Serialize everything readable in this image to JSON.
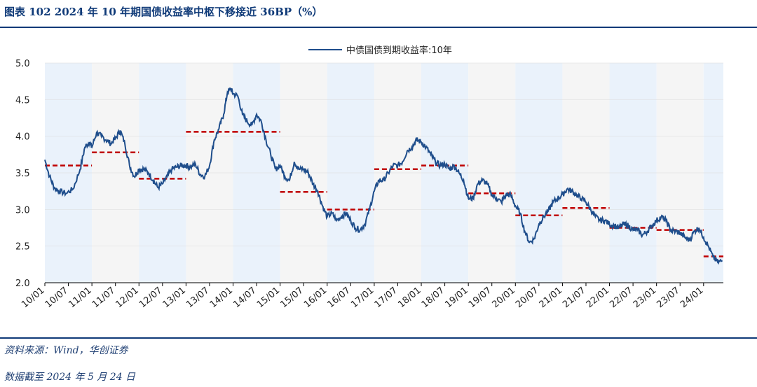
{
  "header": {
    "title": "图表 102   2024 年 10 年期国债收益率中枢下移接近 36BP（%）"
  },
  "footer": {
    "source": "资料来源：Wind，华创证券",
    "cutoff": "数据截至 2024 年 5 月 24 日"
  },
  "colors": {
    "line": "#1f4e8c",
    "mean": "#c00000",
    "band": "#eaf2fb",
    "band_alt": "#f5f5f5",
    "rule": "#0f3a78"
  },
  "chart_data": {
    "type": "line",
    "title": "",
    "legend": [
      "中债国债到期收益率:10年"
    ],
    "legend_position": "top-center",
    "xlabel": "",
    "ylabel": "",
    "ylim": [
      2.0,
      5.0
    ],
    "yticks": [
      "2.0",
      "2.5",
      "3.0",
      "3.5",
      "4.0",
      "4.5",
      "5.0"
    ],
    "x_range": [
      2010.0,
      2024.42
    ],
    "xticks": [
      "10/01",
      "10/07",
      "11/01",
      "11/07",
      "12/01",
      "12/07",
      "13/01",
      "13/07",
      "14/01",
      "14/07",
      "15/01",
      "15/07",
      "16/01",
      "16/07",
      "17/01",
      "17/07",
      "18/01",
      "18/07",
      "19/01",
      "19/07",
      "20/01",
      "20/07",
      "21/01",
      "21/07",
      "22/01",
      "22/07",
      "23/01",
      "23/07",
      "24/01"
    ],
    "series": [
      {
        "name": "中债国债到期收益率:10年",
        "x": [
          2010.0,
          2010.1,
          2010.2,
          2010.3,
          2010.45,
          2010.6,
          2010.75,
          2010.85,
          2010.95,
          2011.0,
          2011.1,
          2011.2,
          2011.3,
          2011.4,
          2011.5,
          2011.6,
          2011.7,
          2011.8,
          2011.9,
          2012.0,
          2012.1,
          2012.2,
          2012.3,
          2012.4,
          2012.5,
          2012.6,
          2012.7,
          2012.8,
          2012.9,
          2013.0,
          2013.1,
          2013.2,
          2013.3,
          2013.4,
          2013.5,
          2013.6,
          2013.7,
          2013.8,
          2013.88,
          2013.95,
          2014.0,
          2014.1,
          2014.2,
          2014.3,
          2014.4,
          2014.5,
          2014.6,
          2014.7,
          2014.8,
          2014.9,
          2015.0,
          2015.1,
          2015.2,
          2015.3,
          2015.4,
          2015.5,
          2015.6,
          2015.7,
          2015.8,
          2015.9,
          2016.0,
          2016.1,
          2016.2,
          2016.3,
          2016.4,
          2016.5,
          2016.6,
          2016.7,
          2016.8,
          2016.9,
          2017.0,
          2017.1,
          2017.2,
          2017.3,
          2017.4,
          2017.5,
          2017.6,
          2017.7,
          2017.8,
          2017.9,
          2018.0,
          2018.1,
          2018.2,
          2018.3,
          2018.4,
          2018.5,
          2018.6,
          2018.7,
          2018.8,
          2018.9,
          2019.0,
          2019.1,
          2019.2,
          2019.3,
          2019.4,
          2019.5,
          2019.6,
          2019.7,
          2019.8,
          2019.9,
          2020.0,
          2020.1,
          2020.2,
          2020.3,
          2020.4,
          2020.5,
          2020.6,
          2020.7,
          2020.8,
          2020.9,
          2021.0,
          2021.1,
          2021.2,
          2021.3,
          2021.4,
          2021.5,
          2021.6,
          2021.7,
          2021.8,
          2021.9,
          2022.0,
          2022.1,
          2022.2,
          2022.3,
          2022.4,
          2022.5,
          2022.6,
          2022.7,
          2022.8,
          2022.9,
          2023.0,
          2023.1,
          2023.2,
          2023.3,
          2023.4,
          2023.5,
          2023.6,
          2023.7,
          2023.8,
          2023.9,
          2024.0,
          2024.1,
          2024.2,
          2024.3,
          2024.4
        ],
        "values": [
          3.68,
          3.45,
          3.3,
          3.25,
          3.22,
          3.28,
          3.55,
          3.85,
          3.92,
          3.85,
          4.05,
          4.0,
          3.95,
          3.9,
          3.97,
          4.08,
          3.9,
          3.6,
          3.45,
          3.55,
          3.55,
          3.5,
          3.4,
          3.3,
          3.35,
          3.45,
          3.55,
          3.58,
          3.6,
          3.6,
          3.58,
          3.62,
          3.48,
          3.45,
          3.6,
          3.95,
          4.1,
          4.3,
          4.6,
          4.65,
          4.58,
          4.55,
          4.3,
          4.2,
          4.15,
          4.3,
          4.2,
          3.95,
          3.75,
          3.55,
          3.6,
          3.45,
          3.4,
          3.65,
          3.55,
          3.55,
          3.5,
          3.35,
          3.25,
          3.05,
          2.9,
          2.95,
          2.85,
          2.9,
          2.95,
          2.85,
          2.75,
          2.72,
          2.8,
          3.0,
          3.25,
          3.4,
          3.4,
          3.5,
          3.6,
          3.6,
          3.65,
          3.8,
          3.85,
          3.95,
          3.92,
          3.85,
          3.75,
          3.65,
          3.6,
          3.62,
          3.55,
          3.6,
          3.5,
          3.4,
          3.15,
          3.15,
          3.35,
          3.4,
          3.35,
          3.2,
          3.15,
          3.1,
          3.2,
          3.2,
          3.05,
          2.95,
          2.7,
          2.55,
          2.6,
          2.8,
          2.9,
          2.98,
          3.1,
          3.15,
          3.2,
          3.28,
          3.25,
          3.2,
          3.15,
          3.1,
          3.0,
          2.9,
          2.85,
          2.85,
          2.8,
          2.78,
          2.75,
          2.8,
          2.78,
          2.72,
          2.72,
          2.65,
          2.7,
          2.78,
          2.85,
          2.9,
          2.85,
          2.72,
          2.7,
          2.68,
          2.62,
          2.58,
          2.7,
          2.75,
          2.62,
          2.5,
          2.35,
          2.28,
          2.3
        ]
      }
    ],
    "period_means": [
      {
        "from": 2010.0,
        "to": 2011.0,
        "value": 3.6
      },
      {
        "from": 2011.0,
        "to": 2012.0,
        "value": 3.78
      },
      {
        "from": 2012.0,
        "to": 2013.0,
        "value": 3.42
      },
      {
        "from": 2013.0,
        "to": 2014.0,
        "value": 4.06
      },
      {
        "from": 2014.0,
        "to": 2015.0,
        "value": 4.06
      },
      {
        "from": 2015.0,
        "to": 2016.0,
        "value": 3.24
      },
      {
        "from": 2016.0,
        "to": 2017.0,
        "value": 3.0
      },
      {
        "from": 2017.0,
        "to": 2018.0,
        "value": 3.55
      },
      {
        "from": 2018.0,
        "to": 2019.0,
        "value": 3.6
      },
      {
        "from": 2019.0,
        "to": 2020.0,
        "value": 3.22
      },
      {
        "from": 2020.0,
        "to": 2021.0,
        "value": 2.92
      },
      {
        "from": 2021.0,
        "to": 2022.0,
        "value": 3.02
      },
      {
        "from": 2022.0,
        "to": 2023.0,
        "value": 2.75
      },
      {
        "from": 2023.0,
        "to": 2024.0,
        "value": 2.72
      },
      {
        "from": 2024.0,
        "to": 2024.42,
        "value": 2.36
      }
    ]
  }
}
